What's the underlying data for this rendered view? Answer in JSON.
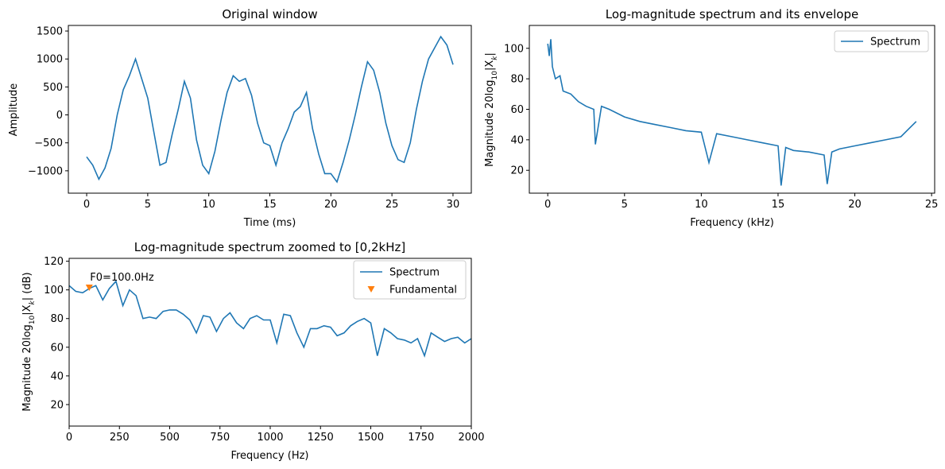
{
  "colors": {
    "series": "#1f77b4",
    "marker": "#ff7f0e",
    "axis": "#000000"
  },
  "chart_data": [
    {
      "type": "line",
      "title": "Original window",
      "xlabel": "Time (ms)",
      "ylabel": "Amplitude",
      "xlim": [
        -1.5,
        31.5
      ],
      "ylim": [
        -1400,
        1600
      ],
      "xticks": [
        0,
        5,
        10,
        15,
        20,
        25,
        30
      ],
      "xticklabels": [
        "0",
        "5",
        "10",
        "15",
        "20",
        "25",
        "30"
      ],
      "yticks": [
        -1000,
        -500,
        0,
        500,
        1000,
        1500
      ],
      "yticklabels": [
        "−1000",
        "−500",
        "0",
        "500",
        "1000",
        "1500"
      ],
      "series": [
        {
          "name": "Original window",
          "x": [
            0,
            0.5,
            1,
            1.5,
            2,
            2.5,
            3,
            3.5,
            4,
            4.5,
            5,
            5.5,
            6,
            6.5,
            7,
            7.5,
            8,
            8.5,
            9,
            9.5,
            10,
            10.5,
            11,
            11.5,
            12,
            12.5,
            13,
            13.5,
            14,
            14.5,
            15,
            15.5,
            16,
            16.5,
            17,
            17.5,
            18,
            18.5,
            19,
            19.5,
            20,
            20.5,
            21,
            21.5,
            22,
            22.5,
            23,
            23.5,
            24,
            24.5,
            25,
            25.5,
            26,
            26.5,
            27,
            27.5,
            28,
            28.5,
            29,
            29.5,
            30
          ],
          "values": [
            -750,
            -900,
            -1150,
            -950,
            -600,
            0,
            450,
            700,
            1000,
            650,
            300,
            -300,
            -900,
            -850,
            -350,
            100,
            600,
            300,
            -450,
            -900,
            -1050,
            -650,
            -100,
            400,
            700,
            600,
            650,
            350,
            -150,
            -500,
            -550,
            -900,
            -500,
            -250,
            50,
            150,
            400,
            -250,
            -700,
            -1050,
            -1050,
            -1200,
            -850,
            -450,
            0,
            500,
            950,
            800,
            400,
            -150,
            -550,
            -800,
            -850,
            -500,
            100,
            600,
            1000,
            1200,
            1400,
            1250,
            900
          ]
        }
      ]
    },
    {
      "type": "line",
      "title": "Log-magnitude spectrum and its envelope",
      "xlabel": "Frequency (kHz)",
      "ylabel_pre": "Magnitude 20log",
      "ylabel_sub": "10",
      "ylabel_post": "|X",
      "ylabel_k": "k",
      "ylabel_end": "|",
      "xlim": [
        -1.2,
        25.2
      ],
      "ylim": [
        5,
        115
      ],
      "xticks": [
        0,
        5,
        10,
        15,
        20,
        25
      ],
      "xticklabels": [
        "0",
        "5",
        "10",
        "15",
        "20",
        "25"
      ],
      "yticks": [
        20,
        40,
        60,
        80,
        100
      ],
      "yticklabels": [
        "20",
        "40",
        "60",
        "80",
        "100"
      ],
      "legend": [
        "Spectrum"
      ],
      "legend_loc": "top-right",
      "series": [
        {
          "name": "Spectrum",
          "x": [
            0,
            0.1,
            0.2,
            0.3,
            0.5,
            0.8,
            1,
            1.5,
            2,
            2.5,
            3,
            3.1,
            3.5,
            4,
            5,
            6,
            7,
            8,
            9,
            10,
            10.5,
            11,
            12,
            13,
            14,
            15,
            15.2,
            15.5,
            16,
            17,
            18,
            18.2,
            18.5,
            19,
            20,
            21,
            22,
            23,
            24
          ],
          "values": [
            103,
            95,
            106,
            88,
            80,
            82,
            72,
            70,
            65,
            62,
            60,
            37,
            62,
            60,
            55,
            52,
            50,
            48,
            46,
            45,
            25,
            44,
            42,
            40,
            38,
            36,
            10,
            35,
            33,
            32,
            30,
            11,
            32,
            34,
            36,
            38,
            40,
            42,
            52
          ]
        }
      ]
    },
    {
      "type": "line",
      "title": "Log-magnitude spectrum zoomed to [0,2kHz]",
      "xlabel": "Frequency (Hz)",
      "ylabel_pre": "Magnitude 20log",
      "ylabel_sub": "10",
      "ylabel_post": "|X",
      "ylabel_k": "k",
      "ylabel_end": "| (dB)",
      "xlim": [
        0,
        2000
      ],
      "ylim": [
        5,
        122
      ],
      "xticks": [
        0,
        250,
        500,
        750,
        1000,
        1250,
        1500,
        1750,
        2000
      ],
      "xticklabels": [
        "0",
        "250",
        "500",
        "750",
        "1000",
        "1250",
        "1500",
        "1750",
        "2000"
      ],
      "yticks": [
        20,
        40,
        60,
        80,
        100,
        120
      ],
      "yticklabels": [
        "20",
        "40",
        "60",
        "80",
        "100",
        "120"
      ],
      "legend": [
        "Spectrum",
        "Fundamental"
      ],
      "legend_loc": "top-right",
      "annotation": {
        "text": "F0=100.0Hz",
        "x": 100,
        "y": 101.5
      },
      "series": [
        {
          "name": "Spectrum",
          "x": [
            0,
            33,
            67,
            100,
            133,
            167,
            200,
            233,
            267,
            300,
            333,
            367,
            400,
            433,
            467,
            500,
            533,
            567,
            600,
            633,
            667,
            700,
            733,
            767,
            800,
            833,
            867,
            900,
            933,
            967,
            1000,
            1033,
            1067,
            1100,
            1133,
            1167,
            1200,
            1233,
            1267,
            1300,
            1333,
            1367,
            1400,
            1433,
            1467,
            1500,
            1533,
            1567,
            1600,
            1633,
            1667,
            1700,
            1733,
            1767,
            1800,
            1833,
            1867,
            1900,
            1933,
            1967,
            2000
          ],
          "values": [
            103,
            99,
            98,
            101,
            103,
            93,
            101,
            106,
            89,
            100,
            96,
            80,
            81,
            80,
            85,
            86,
            86,
            83,
            79,
            70,
            82,
            81,
            71,
            80,
            84,
            77,
            73,
            80,
            82,
            79,
            79,
            63,
            83,
            82,
            70,
            60,
            73,
            73,
            75,
            74,
            68,
            70,
            75,
            78,
            80,
            77,
            54,
            73,
            70,
            66,
            65,
            63,
            66,
            54,
            70,
            67,
            64,
            66,
            67,
            63,
            66
          ]
        },
        {
          "name": "Fundamental",
          "marker": "triangle-down",
          "x": [
            100
          ],
          "values": [
            101.5
          ]
        }
      ]
    }
  ]
}
